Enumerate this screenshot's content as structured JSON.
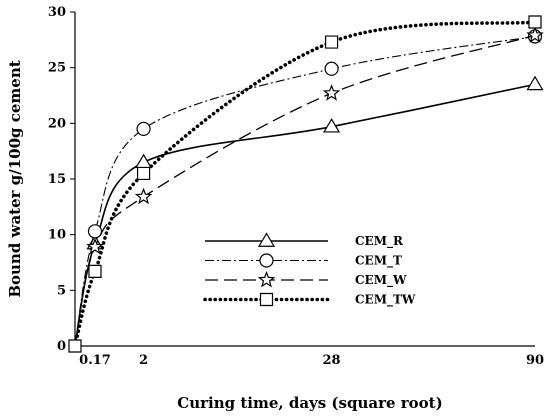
{
  "chart_data": {
    "type": "line",
    "title": "",
    "xlabel": "Curing time, days (square root)",
    "ylabel": "Bound water g/100g cement",
    "x_scale": "sqrt",
    "xlim": [
      0,
      90
    ],
    "ylim": [
      0,
      30
    ],
    "x_ticks": [
      "0.17",
      "2",
      "28",
      "90"
    ],
    "x_tick_values": [
      0.17,
      2,
      28,
      90
    ],
    "y_ticks": [
      "0",
      "5",
      "10",
      "15",
      "20",
      "25",
      "30"
    ],
    "y_tick_values": [
      0,
      5,
      10,
      15,
      20,
      25,
      30
    ],
    "grid": false,
    "legend_position": "center-right",
    "series": [
      {
        "name": "CEM_R",
        "marker": "triangle",
        "dash": "solid",
        "x": [
          0,
          0.17,
          2,
          28,
          90
        ],
        "y": [
          0,
          9.2,
          16.5,
          19.7,
          23.5
        ]
      },
      {
        "name": "CEM_T",
        "marker": "circle",
        "dash": "dash-dot",
        "x": [
          0,
          0.17,
          2,
          28,
          90
        ],
        "y": [
          0,
          10.3,
          19.5,
          24.9,
          27.8
        ]
      },
      {
        "name": "CEM_W",
        "marker": "star",
        "dash": "dashed",
        "x": [
          0,
          0.17,
          2,
          28,
          90
        ],
        "y": [
          0,
          8.9,
          13.4,
          22.7,
          27.9
        ]
      },
      {
        "name": "CEM_TW",
        "marker": "square",
        "dash": "dotted",
        "x": [
          0,
          0.17,
          2,
          28,
          90
        ],
        "y": [
          0,
          6.7,
          15.5,
          27.3,
          29.1
        ]
      }
    ]
  }
}
